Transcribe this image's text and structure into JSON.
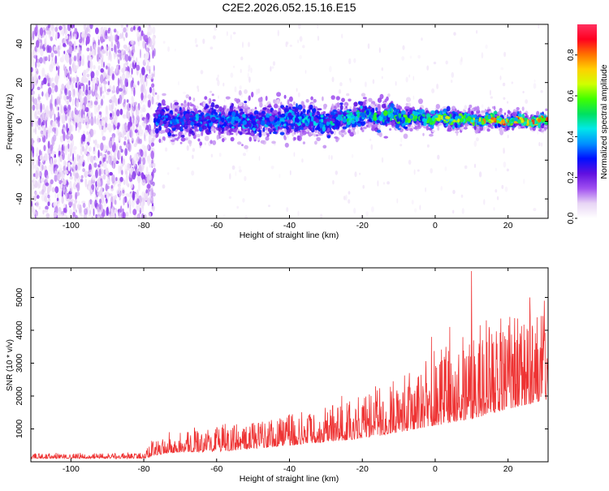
{
  "title": "C2E2.2026.052.15.16.E15",
  "chart_data": [
    {
      "type": "heatmap",
      "title": "C2E2.2026.052.15.16.E15",
      "xlabel": "Height of straight line (km)",
      "ylabel": "Frequency (Hz)",
      "xlim": [
        -111,
        31
      ],
      "ylim": [
        -50,
        50
      ],
      "xticks": [
        -100,
        -80,
        -60,
        -40,
        -20,
        0,
        20
      ],
      "yticks": [
        -40,
        -20,
        0,
        20,
        40
      ],
      "noise_region_x": [
        -111,
        -77
      ],
      "signal_region_x": [
        -77,
        31
      ],
      "ridge_centerline": {
        "x": [
          -77,
          -70,
          -60,
          -50,
          -40,
          -30,
          -20,
          -10,
          0,
          10,
          20,
          31
        ],
        "y": [
          1,
          0,
          1,
          0,
          1,
          0,
          3,
          2,
          1,
          1,
          0,
          0
        ]
      },
      "ridge_halfwidth_hz": {
        "x": [
          -77,
          -60,
          -40,
          -20,
          0,
          20,
          31
        ],
        "y": [
          8,
          7,
          7,
          6,
          4,
          3,
          3
        ]
      },
      "ridge_peak_amplitude": {
        "x": [
          -77,
          -60,
          -40,
          -20,
          -10,
          0,
          10,
          20,
          31
        ],
        "y": [
          0.35,
          0.4,
          0.4,
          0.5,
          0.55,
          0.6,
          0.7,
          0.8,
          0.85
        ]
      },
      "colorbar": {
        "label": "Normalized spectral amplitude",
        "range": [
          0.0,
          0.95
        ],
        "ticks": [
          "0.0",
          "0.2",
          "0.4",
          "0.6",
          "0.8"
        ],
        "tick_values": [
          0.0,
          0.2,
          0.4,
          0.6,
          0.8
        ],
        "colormap": [
          "#ffffff",
          "#e8d5f5",
          "#a050f0",
          "#6010e0",
          "#0010ff",
          "#0090ff",
          "#00e8e8",
          "#00e060",
          "#40ff00",
          "#d0ff00",
          "#ffd000",
          "#ff7000",
          "#ff0020",
          "#ff3060"
        ]
      }
    },
    {
      "type": "line",
      "xlabel": "Height of straight line (km)",
      "ylabel": "SNR (10 * v/v)",
      "xlim": [
        -111,
        31
      ],
      "ylim": [
        0,
        5900
      ],
      "xticks": [
        -100,
        -80,
        -60,
        -40,
        -20,
        0,
        20
      ],
      "yticks": [
        1000,
        2000,
        3000,
        4000,
        5000
      ],
      "series": [
        {
          "name": "SNR",
          "color": "#ee3333",
          "envelope_x": [
            -111,
            -90,
            -80,
            -77,
            -70,
            -60,
            -50,
            -40,
            -30,
            -20,
            -10,
            0,
            10,
            20,
            31
          ],
          "envelope_base": [
            100,
            100,
            100,
            200,
            300,
            300,
            400,
            500,
            600,
            700,
            900,
            1100,
            1300,
            1600,
            1900
          ],
          "envelope_spread": [
            150,
            160,
            160,
            500,
            650,
            700,
            800,
            950,
            1100,
            1300,
            1700,
            2100,
            2500,
            2700,
            2900
          ],
          "spikes": [
            {
              "x": 10,
              "y": 5800
            },
            {
              "x": 26,
              "y": 5000
            },
            {
              "x": 30,
              "y": 4900
            },
            {
              "x": 14,
              "y": 4300
            },
            {
              "x": 4,
              "y": 4100
            },
            {
              "x": -1,
              "y": 3800
            }
          ]
        }
      ]
    }
  ]
}
